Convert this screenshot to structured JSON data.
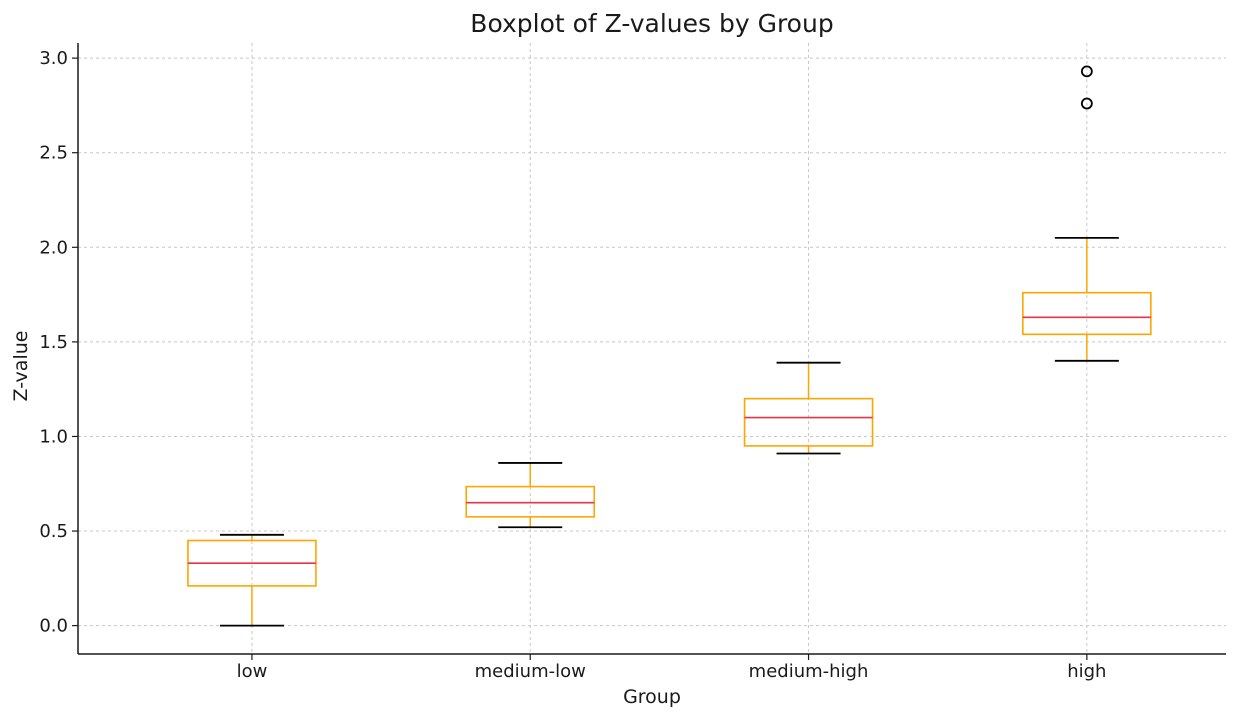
{
  "chart_data": {
    "type": "boxplot",
    "title": "Boxplot of Z-values by Group",
    "xlabel": "Group",
    "ylabel": "Z-value",
    "ylim": [
      -0.15,
      3.08
    ],
    "yticks": [
      "0.0",
      "0.5",
      "1.0",
      "1.5",
      "2.0",
      "2.5",
      "3.0"
    ],
    "categories": [
      "low",
      "medium-low",
      "medium-high",
      "high"
    ],
    "boxes": [
      {
        "category": "low",
        "whisker_low": 0.0,
        "q1": 0.21,
        "median": 0.33,
        "q3": 0.45,
        "whisker_high": 0.48,
        "outliers": []
      },
      {
        "category": "medium-low",
        "whisker_low": 0.52,
        "q1": 0.575,
        "median": 0.65,
        "q3": 0.735,
        "whisker_high": 0.86,
        "outliers": []
      },
      {
        "category": "medium-high",
        "whisker_low": 0.91,
        "q1": 0.95,
        "median": 1.1,
        "q3": 1.2,
        "whisker_high": 1.39,
        "outliers": []
      },
      {
        "category": "high",
        "whisker_low": 1.4,
        "q1": 1.54,
        "median": 1.63,
        "q3": 1.76,
        "whisker_high": 2.05,
        "outliers": [
          2.76,
          2.93
        ]
      }
    ],
    "grid": true,
    "colors": {
      "box": "#ffa500",
      "median": "#e8334a",
      "whisker_cap": "#000000",
      "outlier": "#000000",
      "grid": "#c8c8c8"
    }
  }
}
